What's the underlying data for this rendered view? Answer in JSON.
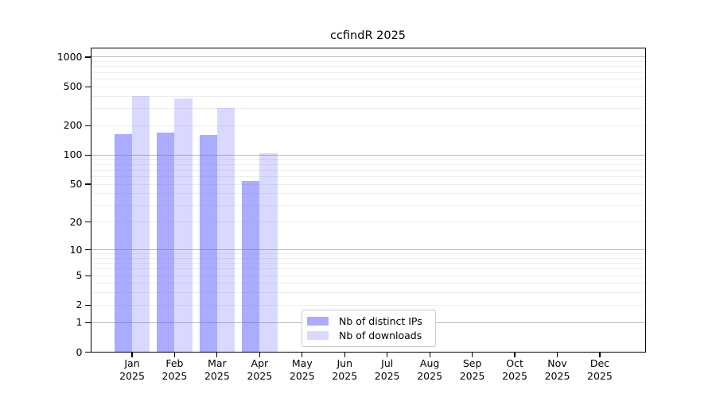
{
  "title": "ccfindR 2025",
  "legend": {
    "items": [
      {
        "label": "Nb of distinct IPs",
        "color": "rgba(102,102,255,0.55)"
      },
      {
        "label": "Nb of downloads",
        "color": "rgba(102,102,255,0.25)"
      }
    ]
  },
  "chart_data": {
    "type": "bar",
    "title": "ccfindR 2025",
    "categories": [
      "Jan",
      "Feb",
      "Mar",
      "Apr",
      "May",
      "Jun",
      "Jul",
      "Aug",
      "Sep",
      "Oct",
      "Nov",
      "Dec"
    ],
    "year": "2025",
    "series": [
      {
        "name": "Nb of distinct IPs",
        "color": "rgba(102,102,255,0.55)",
        "values": [
          163,
          171,
          162,
          54,
          null,
          null,
          null,
          null,
          null,
          null,
          null,
          null
        ]
      },
      {
        "name": "Nb of downloads",
        "color": "rgba(102,102,255,0.25)",
        "values": [
          400,
          378,
          305,
          104,
          null,
          null,
          null,
          null,
          null,
          null,
          null,
          null
        ]
      }
    ],
    "yscale": "log10(value+1)",
    "yticks": [
      1000,
      500,
      200,
      100,
      50,
      20,
      10,
      5,
      2,
      1,
      0
    ],
    "ylim": [
      0,
      1250
    ],
    "grid": true,
    "legend_position": "lower center"
  },
  "colors": {
    "major_grid": "#b9b9b9",
    "minor_grid": "#ededed",
    "axis": "#000000",
    "legend_border": "#cccccc"
  }
}
